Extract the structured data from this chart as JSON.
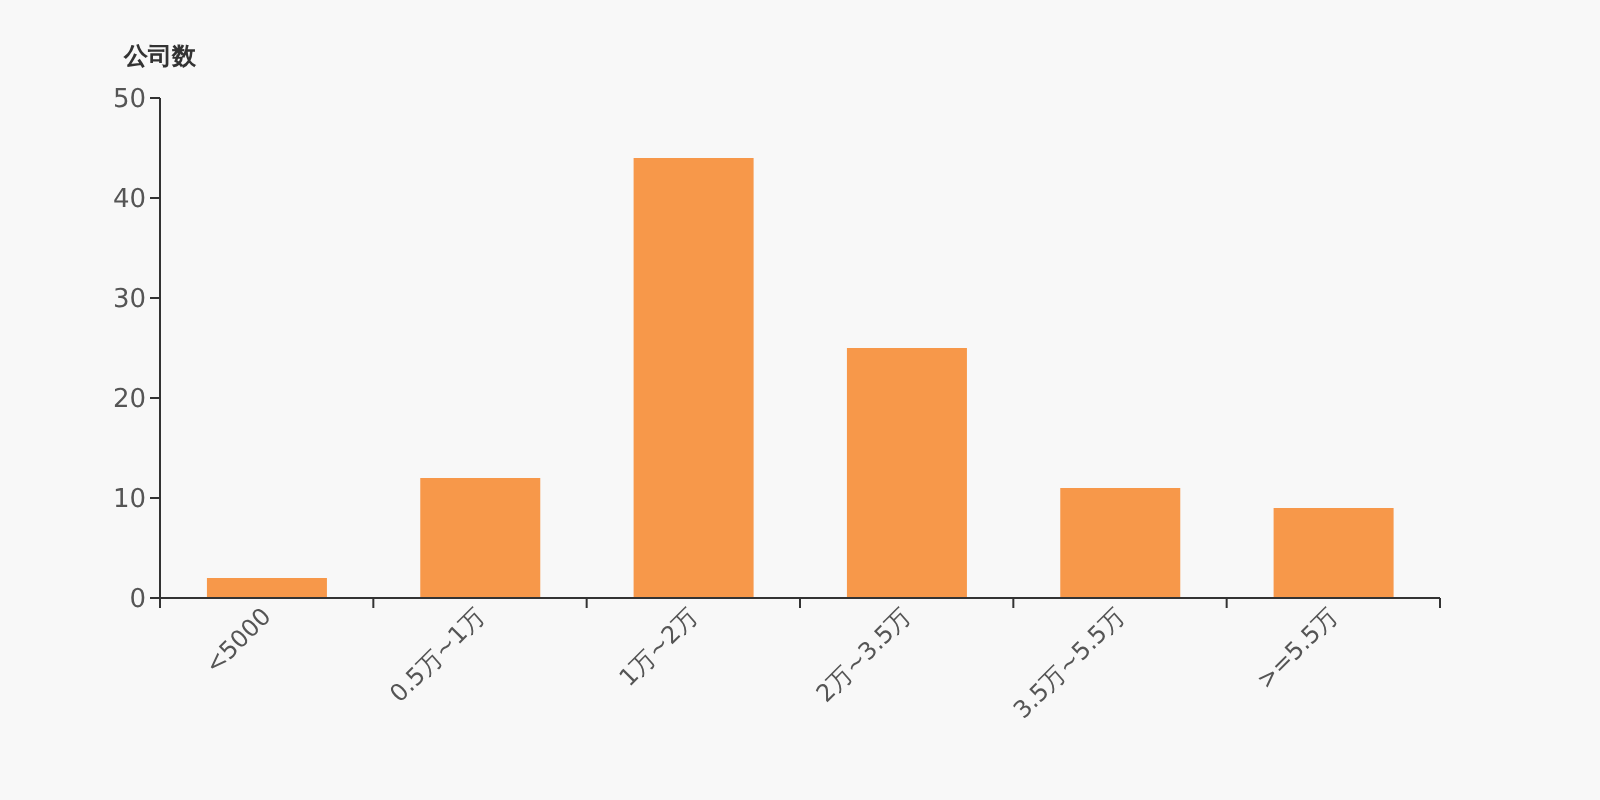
{
  "chart_data": {
    "type": "bar",
    "ylabel": "公司数",
    "categories": [
      "<5000",
      "0.5万~1万",
      "1万~2万",
      "2万~3.5万",
      "3.5万~5.5万",
      ">=5.5万"
    ],
    "values": [
      2,
      12,
      44,
      25,
      11,
      9
    ],
    "color": "#f7984a",
    "ylim": [
      0,
      50
    ],
    "yticks": [
      0,
      10,
      20,
      30,
      40,
      50
    ]
  }
}
